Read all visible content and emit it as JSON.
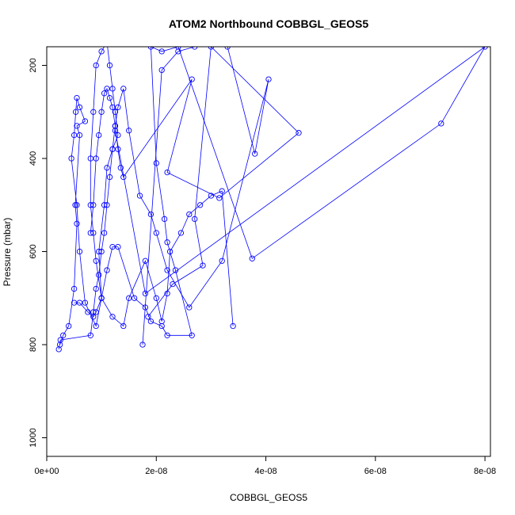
{
  "chart_data": {
    "type": "line",
    "title": "ATOM2 Northbound COBBGL_GEOS5",
    "xlabel": "COBBGL_GEOS5",
    "ylabel": "Pressure (mbar)",
    "xlim": [
      0,
      8.1e-08
    ],
    "ylim": [
      1040,
      160
    ],
    "y_reversed": true,
    "x_ticks": [
      0,
      2e-08,
      4e-08,
      6e-08,
      8e-08
    ],
    "x_tick_labels": [
      "0e+00",
      "2e-08",
      "4e-08",
      "6e-08",
      "8e-08"
    ],
    "y_ticks": [
      200,
      400,
      600,
      800,
      1000
    ],
    "y_tick_labels": [
      "200",
      "400",
      "600",
      "800",
      "1000"
    ],
    "line_color": "#0000ff",
    "marker": "open-circle",
    "series": [
      {
        "x": [
          2.4e-09,
          3e-09,
          4e-09,
          5e-09,
          5.5e-09,
          5.2e-09,
          6e-09,
          5.5e-09,
          7e-09,
          6e-09,
          5.5e-09,
          5.3e-09,
          5e-09,
          4.5e-09,
          5.5e-09,
          6e-09,
          7e-09,
          9e-09,
          1e-08,
          9.5e-09,
          1.05e-08,
          1.1e-08,
          1.2e-08,
          1.3e-08,
          1.25e-08,
          1.2e-08,
          1.15e-08,
          1.1e-08,
          1e-08,
          9e-09,
          8.5e-09,
          8e-09,
          8e-09,
          8.5e-09,
          9e-09,
          1e-08,
          1.2e-08,
          1.4e-08,
          1.5e-08,
          1.8e-08,
          2e-08,
          2.1e-08,
          2.2e-08,
          2.25e-08,
          2.45e-08,
          2.6e-08,
          2.8e-08,
          3e-08,
          3.2e-08,
          3.4e-08
        ],
        "y": [
          800,
          780,
          760,
          680,
          540,
          500,
          350,
          330,
          320,
          290,
          270,
          300,
          350,
          400,
          500,
          600,
          710,
          760,
          700,
          600,
          500,
          420,
          380,
          350,
          300,
          250,
          200,
          150,
          170,
          200,
          300,
          400,
          500,
          560,
          620,
          700,
          740,
          760,
          700,
          620,
          700,
          750,
          690,
          600,
          560,
          520,
          500,
          480,
          470,
          760
        ]
      },
      {
        "x": [
          2.2e-09,
          2.5e-09,
          8e-09,
          8.5e-09,
          9e-09,
          9.5e-09,
          1e-08,
          1.05e-08,
          1.1e-08,
          1.15e-08,
          1.2e-08,
          1.25e-08,
          1.3e-08,
          1.4e-08,
          1.5e-08,
          1.7e-08,
          1.9e-08,
          2e-08,
          2.2e-08,
          2.6e-08,
          3.2e-08,
          4.05e-08,
          3.8e-08,
          3.3e-08,
          2.9e-08,
          2.7e-08,
          2.4e-08,
          2.1e-08,
          1.75e-08
        ],
        "y": [
          810,
          790,
          780,
          730,
          680,
          650,
          600,
          560,
          500,
          440,
          380,
          330,
          290,
          250,
          340,
          480,
          520,
          560,
          640,
          720,
          620,
          230,
          390,
          160,
          150,
          160,
          170,
          210,
          800
        ]
      },
      {
        "x": [
          5e-09,
          6e-09,
          7.5e-09,
          8.5e-09,
          9e-09,
          1e-08,
          1.1e-08,
          1.2e-08,
          1.3e-08,
          1.6e-08,
          1.8e-08,
          1.9e-08,
          2.1e-08,
          2.2e-08,
          2.65e-08,
          2.35e-08,
          2.2e-08,
          2.15e-08,
          2e-08,
          1.9e-08,
          2.1e-08,
          2.4e-08,
          3.75e-08,
          7.2e-08,
          8e-08,
          1.8e-08,
          1.25e-08
        ],
        "y": [
          710,
          710,
          730,
          740,
          730,
          700,
          640,
          590,
          590,
          700,
          720,
          750,
          760,
          780,
          780,
          640,
          580,
          530,
          410,
          160,
          170,
          160,
          615,
          325,
          160,
          690,
          340
        ]
      },
      {
        "x": [
          8e-09,
          8.5e-09,
          9e-09,
          9.5e-09,
          1e-08,
          1.05e-08,
          1.1e-08,
          1.15e-08,
          1.2e-08,
          1.25e-08,
          1.3e-08,
          1.35e-08,
          1.4e-08,
          2.65e-08,
          2.2e-08,
          3.15e-08,
          4.6e-08,
          3e-08,
          2.7e-08,
          2.85e-08,
          2.3e-08,
          1.85e-08
        ],
        "y": [
          560,
          500,
          400,
          350,
          300,
          260,
          250,
          270,
          290,
          330,
          380,
          420,
          440,
          230,
          430,
          485,
          345,
          160,
          530,
          630,
          670,
          740
        ]
      }
    ]
  }
}
